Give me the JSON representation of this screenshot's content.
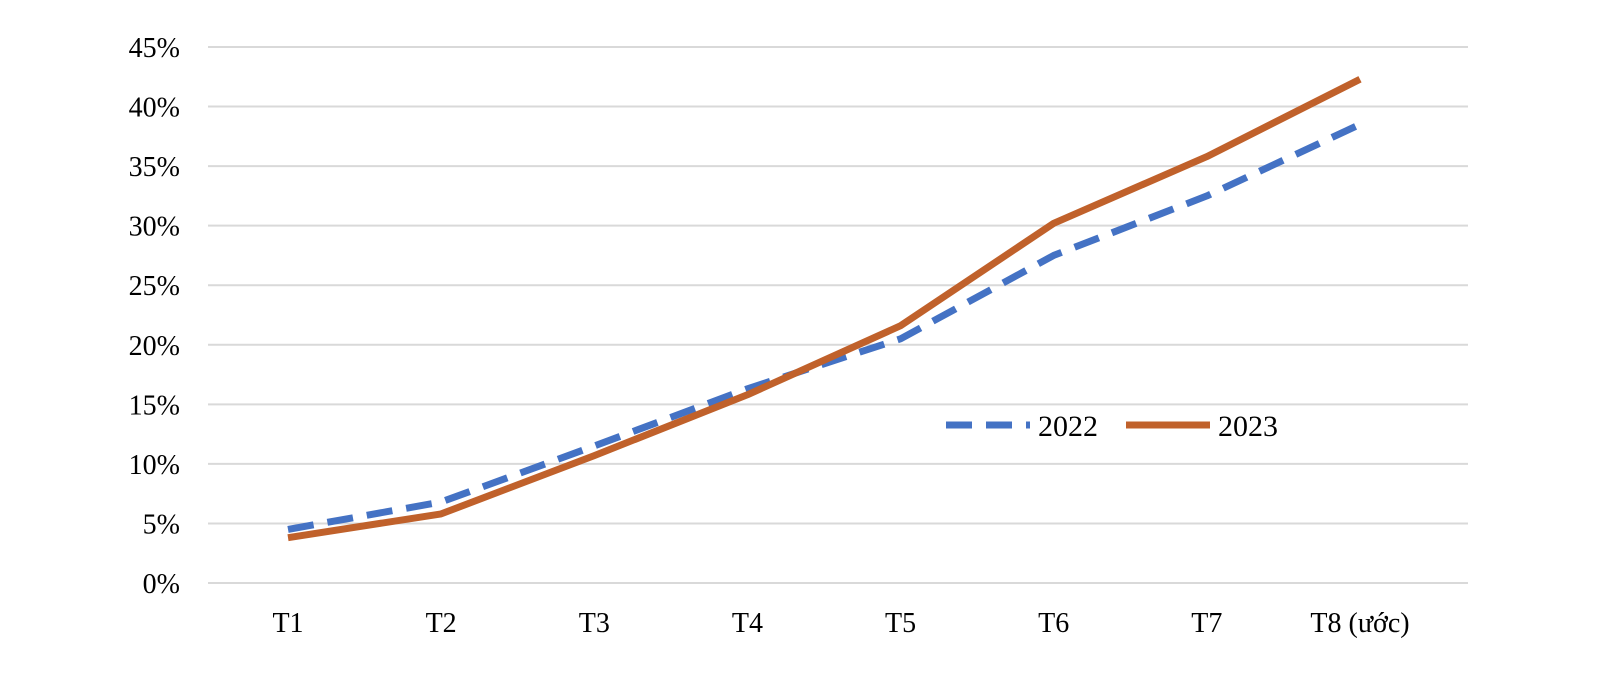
{
  "chart_data": {
    "type": "line",
    "title": "",
    "xlabel": "",
    "ylabel": "",
    "categories": [
      "T1",
      "T2",
      "T3",
      "T4",
      "T5",
      "T6",
      "T7",
      "T8 (ước)"
    ],
    "yticks": [
      "0%",
      "5%",
      "10%",
      "15%",
      "20%",
      "25%",
      "30%",
      "35%",
      "40%",
      "45%"
    ],
    "ylim": [
      0,
      45
    ],
    "grid": true,
    "legend_position": "center-right",
    "series": [
      {
        "name": "2022",
        "values": [
          4.5,
          6.8,
          11.5,
          16.3,
          20.5,
          27.5,
          32.5,
          38.5
        ],
        "color": "#4472C4",
        "style": "dashed"
      },
      {
        "name": "2023",
        "values": [
          3.8,
          5.8,
          10.7,
          15.8,
          21.6,
          30.2,
          35.8,
          42.3
        ],
        "color": "#C0612B",
        "style": "solid"
      }
    ]
  }
}
